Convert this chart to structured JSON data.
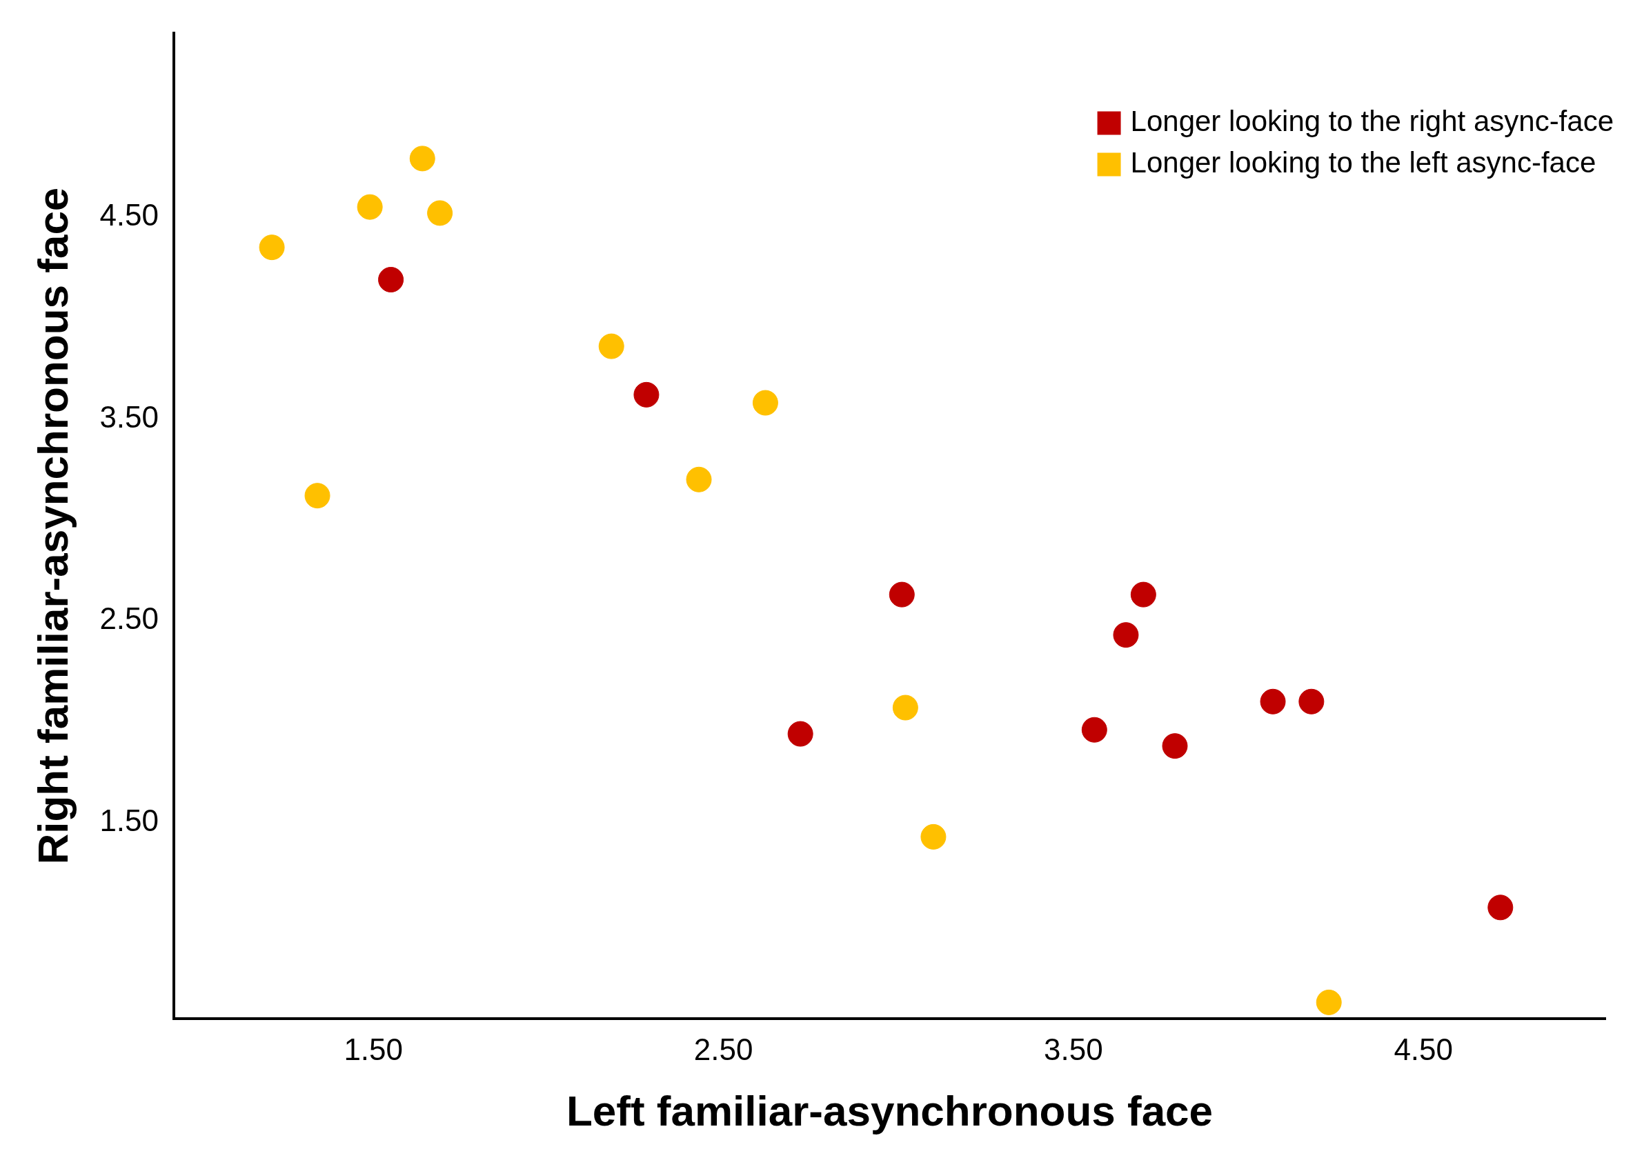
{
  "chart_data": {
    "type": "scatter",
    "xlabel": "Left familiar-asynchronous face",
    "ylabel": "Right familiar-asynchronous face",
    "xlim": [
      0.93,
      5.02
    ],
    "ylim": [
      0.53,
      5.41
    ],
    "xticks": [
      {
        "value": 1.5,
        "label": "1.50"
      },
      {
        "value": 2.5,
        "label": "2.50"
      },
      {
        "value": 3.5,
        "label": "3.50"
      },
      {
        "value": 4.5,
        "label": "4.50"
      }
    ],
    "yticks": [
      {
        "value": 1.5,
        "label": "1.50"
      },
      {
        "value": 2.5,
        "label": "2.50"
      },
      {
        "value": 3.5,
        "label": "3.50"
      },
      {
        "value": 4.5,
        "label": "4.50"
      }
    ],
    "grid": false,
    "legend": "top right",
    "marker": "circle",
    "series": [
      {
        "name": "Longer looking to the right async-face",
        "color": "#c00000",
        "x": [
          1.55,
          2.28,
          3.01,
          2.72,
          3.7,
          3.65,
          3.56,
          3.79,
          4.07,
          4.18,
          4.72
        ],
        "values": [
          4.19,
          3.62,
          2.63,
          1.94,
          2.63,
          2.43,
          1.96,
          1.88,
          2.1,
          2.1,
          1.08
        ]
      },
      {
        "name": "Longer looking to the left async-face",
        "color": "#ffc000",
        "x": [
          1.21,
          1.49,
          1.64,
          1.69,
          1.34,
          2.18,
          2.62,
          2.43,
          3.02,
          3.1,
          4.23
        ],
        "values": [
          4.35,
          4.55,
          4.79,
          4.52,
          3.12,
          3.86,
          3.58,
          3.2,
          2.07,
          1.43,
          0.61
        ]
      }
    ]
  }
}
